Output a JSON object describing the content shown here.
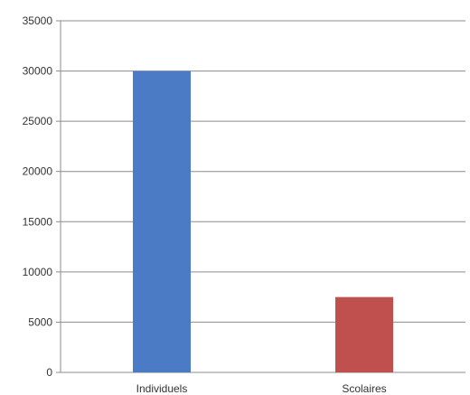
{
  "chart_data": {
    "type": "bar",
    "categories": [
      "Individuels",
      "Scolaires"
    ],
    "values": [
      30000,
      7500
    ],
    "colors": [
      "#4a7bc4",
      "#c0504d"
    ],
    "title": "",
    "xlabel": "",
    "ylabel": "",
    "ylim": [
      0,
      35000
    ],
    "yticks": [
      0,
      5000,
      10000,
      15000,
      20000,
      25000,
      30000,
      35000
    ],
    "grid": true,
    "legend": "none"
  }
}
